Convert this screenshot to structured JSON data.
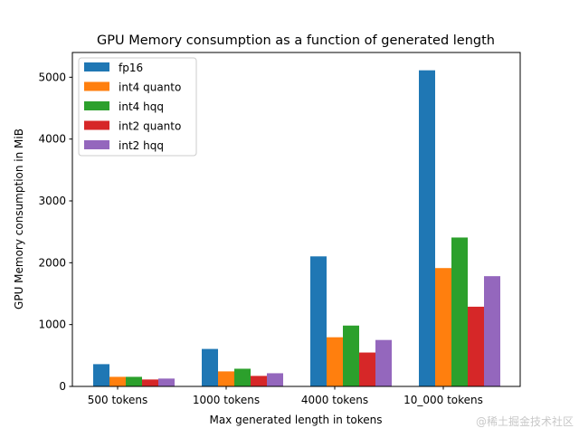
{
  "chart_data": {
    "type": "bar",
    "title": "GPU Memory consumption as a function of generated length",
    "xlabel": "Max generated length in tokens",
    "ylabel": "GPU Memory consumption in MiB",
    "categories": [
      "500 tokens",
      "1000 tokens",
      "4000 tokens",
      "10_000 tokens"
    ],
    "ylim": [
      0,
      5400
    ],
    "yticks": [
      0,
      1000,
      2000,
      3000,
      4000,
      5000
    ],
    "grid": false,
    "legend_position": "top-left",
    "series": [
      {
        "name": "fp16",
        "color": "#1f77b4",
        "values": [
          360,
          606,
          2103,
          5112
        ]
      },
      {
        "name": "int4 quanto",
        "color": "#ff7f0e",
        "values": [
          155,
          243,
          795,
          1914
        ]
      },
      {
        "name": "int4 hqq",
        "color": "#2ca02c",
        "values": [
          155,
          286,
          984,
          2408
        ]
      },
      {
        "name": "int2 quanto",
        "color": "#d62728",
        "values": [
          112,
          170,
          548,
          1289
        ]
      },
      {
        "name": "int2 hqq",
        "color": "#9467bd",
        "values": [
          127,
          213,
          751,
          1783
        ]
      }
    ]
  },
  "watermark": "@稀土掘金技术社区"
}
